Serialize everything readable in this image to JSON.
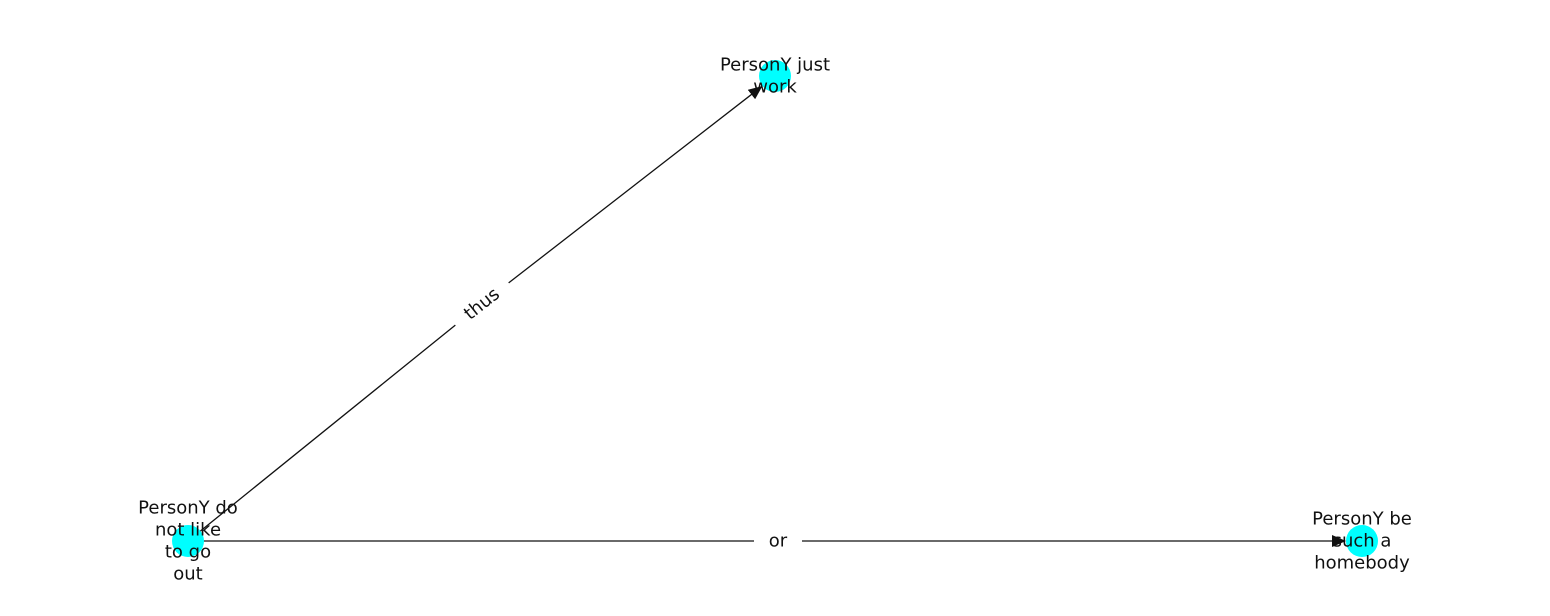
{
  "colors": {
    "node_fill": "#00FFFF",
    "edge": "#111111",
    "text": "#111111",
    "background": "#FFFFFF"
  },
  "nodes": [
    {
      "id": "n1",
      "lines": [
        "PersonY just",
        "work"
      ]
    },
    {
      "id": "n2",
      "lines": [
        "PersonY do",
        "not like",
        "to go",
        "out"
      ]
    },
    {
      "id": "n3",
      "lines": [
        "PersonY be",
        "such a",
        "homebody"
      ]
    }
  ],
  "edges": [
    {
      "source": "n2",
      "target": "n1",
      "label": "thus"
    },
    {
      "source": "n2",
      "target": "n3",
      "label": "or"
    }
  ]
}
